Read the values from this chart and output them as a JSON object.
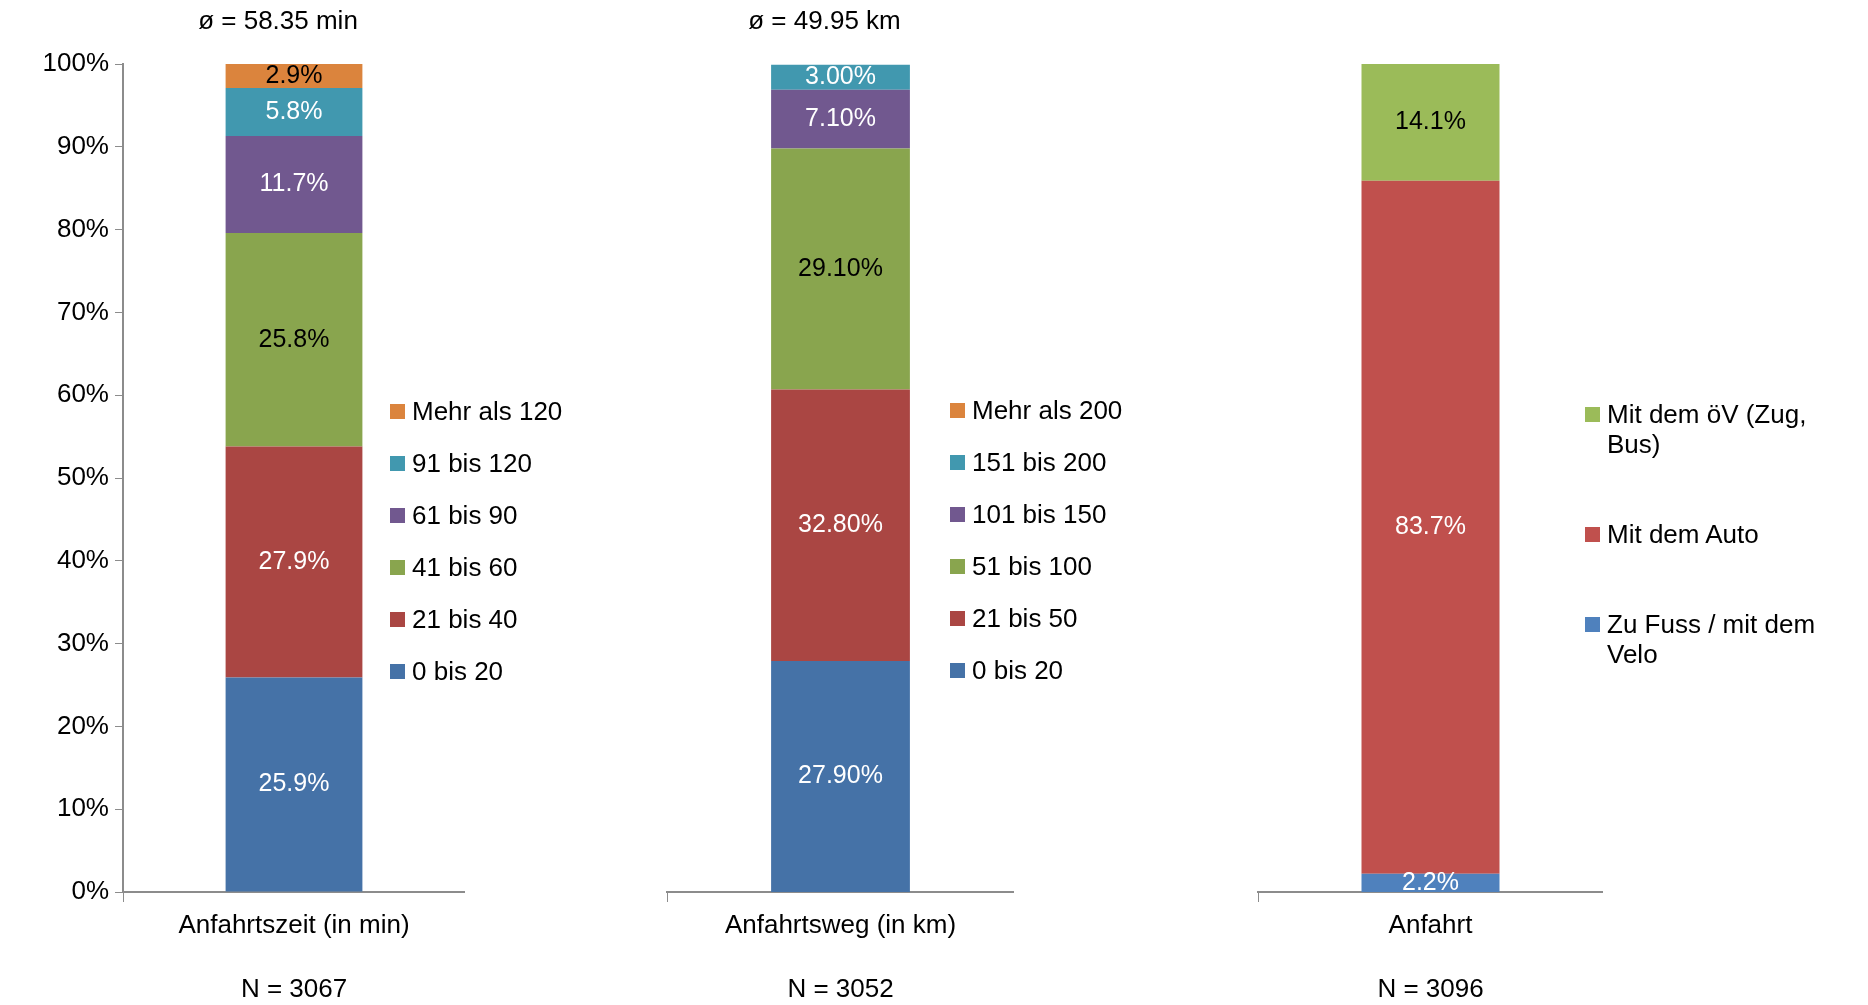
{
  "chart_data": [
    {
      "type": "bar",
      "stacked": true,
      "title": "ø = 58.35 min",
      "categories": [
        "Anfahrtszeit (in min)"
      ],
      "annotations": [
        "N = 3067"
      ],
      "legend": "right",
      "ylim": [
        0,
        100
      ],
      "yticks": [
        {
          "value": 0,
          "label": "0%"
        },
        {
          "value": 10,
          "label": "10%"
        },
        {
          "value": 20,
          "label": "20%"
        },
        {
          "value": 30,
          "label": "30%"
        },
        {
          "value": 40,
          "label": "40%"
        },
        {
          "value": 50,
          "label": "50%"
        },
        {
          "value": 60,
          "label": "60%"
        },
        {
          "value": 70,
          "label": "70%"
        },
        {
          "value": 80,
          "label": "80%"
        },
        {
          "value": 90,
          "label": "90%"
        },
        {
          "value": 100,
          "label": "100%"
        }
      ],
      "series": [
        {
          "name": "0 bis 20",
          "color": "#4572a7",
          "values": [
            25.9
          ],
          "value_labels": [
            "25.9%"
          ]
        },
        {
          "name": "21 bis 40",
          "color": "#aa4643",
          "values": [
            27.9
          ],
          "value_labels": [
            "27.9%"
          ]
        },
        {
          "name": "41 bis 60",
          "color": "#89a54e",
          "values": [
            25.8
          ],
          "value_labels": [
            "25.8%"
          ]
        },
        {
          "name": "61 bis 90",
          "color": "#71588f",
          "values": [
            11.7
          ],
          "value_labels": [
            "11.7%"
          ]
        },
        {
          "name": "91 bis 120",
          "color": "#4198af",
          "values": [
            5.8
          ],
          "value_labels": [
            "5.8%"
          ]
        },
        {
          "name": "Mehr als 120",
          "color": "#db843d",
          "values": [
            2.9
          ],
          "value_labels": [
            "2.9%"
          ]
        }
      ]
    },
    {
      "type": "bar",
      "stacked": true,
      "title": "ø = 49.95 km",
      "categories": [
        "Anfahrtsweg (in km)"
      ],
      "annotations": [
        "N = 3052"
      ],
      "legend": "right",
      "ylim": [
        0,
        100
      ],
      "tick_labels": "x",
      "yticks": [
        {
          "value": 0,
          "label": null
        },
        {
          "value": 100,
          "label": null
        }
      ],
      "series": [
        {
          "name": "0 bis 20",
          "color": "#4572a7",
          "values": [
            27.9
          ],
          "value_labels": [
            "27.90%"
          ]
        },
        {
          "name": "21 bis 50",
          "color": "#aa4643",
          "values": [
            32.8
          ],
          "value_labels": [
            "32.80%"
          ]
        },
        {
          "name": "51 bis 100",
          "color": "#89a54e",
          "values": [
            29.1
          ],
          "value_labels": [
            "29.10%"
          ]
        },
        {
          "name": "101 bis 150",
          "color": "#71588f",
          "values": [
            7.1
          ],
          "value_labels": [
            "7.10%"
          ]
        },
        {
          "name": "151 bis 200",
          "color": "#4198af",
          "values": [
            3.0
          ],
          "value_labels": [
            "3.00%"
          ]
        },
        {
          "name": "Mehr als 200",
          "color": "#db843d",
          "values": [
            0
          ],
          "value_labels": [
            null
          ]
        }
      ]
    },
    {
      "type": "bar",
      "stacked": true,
      "categories": [
        "Anfahrt"
      ],
      "annotations": [
        "N = 3096"
      ],
      "legend": "right",
      "ylim": [
        0,
        100
      ],
      "tick_labels": "x",
      "yticks": [
        {
          "value": 0,
          "label": null
        },
        {
          "value": 100,
          "label": null
        }
      ],
      "series": [
        {
          "name": "Zu Fuss / mit dem Velo",
          "color": "#4f81bd",
          "values": [
            2.2
          ],
          "value_labels": [
            "2.2%"
          ]
        },
        {
          "name": "Mit dem Auto",
          "color": "#c0504d",
          "values": [
            83.7
          ],
          "value_labels": [
            "83.7%"
          ]
        },
        {
          "name": "Mit dem öV (Zug, Bus)",
          "color": "#9bbb59",
          "values": [
            14.1
          ],
          "value_labels": [
            "14.1%"
          ]
        }
      ]
    }
  ]
}
